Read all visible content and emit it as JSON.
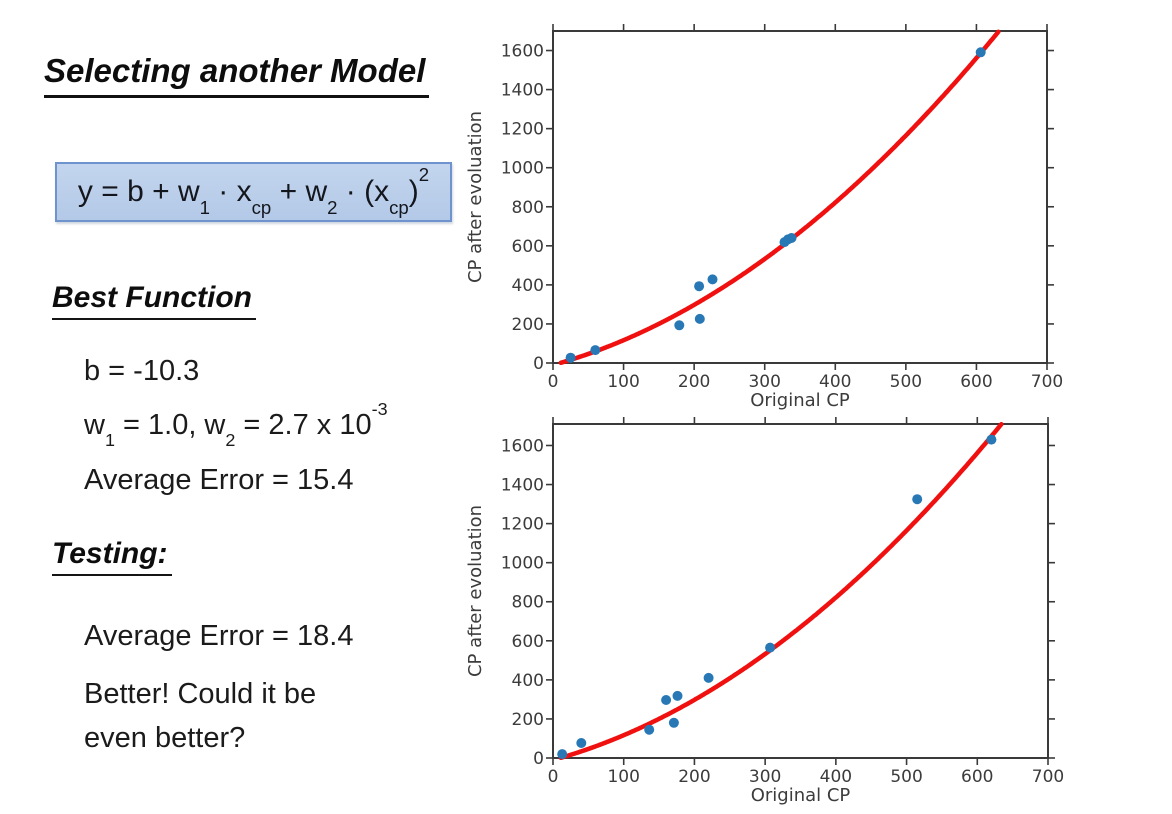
{
  "title": "Selecting another Model",
  "formula": [
    {
      "t": "y = b + w"
    },
    {
      "t": "1",
      "s": "sub"
    },
    {
      "t": " · x"
    },
    {
      "t": "cp",
      "s": "sub"
    },
    {
      "t": " + w"
    },
    {
      "t": "2",
      "s": "sub"
    },
    {
      "t": " · (x"
    },
    {
      "t": "cp",
      "s": "sub"
    },
    {
      "t": ")"
    },
    {
      "t": "2",
      "s": "sup"
    }
  ],
  "best_function": {
    "heading": "Best Function",
    "param_b": [
      {
        "t": "b = -10.3"
      }
    ],
    "params_w": [
      {
        "t": "w"
      },
      {
        "t": "1",
        "s": "sub"
      },
      {
        "t": " = 1.0, w"
      },
      {
        "t": "2",
        "s": "sub"
      },
      {
        "t": " = 2.7 x 10"
      },
      {
        "t": "-3",
        "s": "sup"
      }
    ],
    "avg_error": [
      {
        "t": "Average Error = 15.4"
      }
    ]
  },
  "testing": {
    "heading": "Testing:",
    "avg_error": [
      {
        "t": "Average Error = 18.4"
      }
    ],
    "note_line1": "Better! Could it be",
    "note_line2": "even better?"
  },
  "colors": {
    "formula_box_fill": "#b9cdea",
    "formula_box_border": "#6f94cd",
    "curve_red": "#f01010",
    "point_blue": "#2878b5",
    "axis_gray": "#3a3a3a"
  },
  "chart_data": [
    {
      "type": "scatter",
      "role": "training",
      "xlabel": "Original CP",
      "ylabel": "CP after evoluation",
      "xlim": [
        0,
        700
      ],
      "ylim": [
        0,
        1700
      ],
      "xticks": [
        0,
        100,
        200,
        300,
        400,
        500,
        600,
        700
      ],
      "yticks": [
        0,
        200,
        400,
        600,
        800,
        1000,
        1200,
        1400,
        1600
      ],
      "grid": false,
      "legend": null,
      "points": [
        [
          338,
          640
        ],
        [
          333,
          633
        ],
        [
          328,
          619
        ],
        [
          207,
          393
        ],
        [
          226,
          428
        ],
        [
          25,
          27
        ],
        [
          179,
          193
        ],
        [
          60,
          66
        ],
        [
          208,
          226
        ],
        [
          606,
          1591
        ]
      ],
      "fit": {
        "type": "quadratic",
        "b": -10.3,
        "w1": 1.0,
        "w2": 0.0027
      }
    },
    {
      "type": "scatter",
      "role": "testing",
      "xlabel": "Original CP",
      "ylabel": "CP after evoluation",
      "xlim": [
        0,
        700
      ],
      "ylim": [
        0,
        1710
      ],
      "xticks": [
        0,
        100,
        200,
        300,
        400,
        500,
        600,
        700
      ],
      "yticks": [
        0,
        200,
        400,
        600,
        800,
        1000,
        1200,
        1400,
        1600
      ],
      "grid": false,
      "legend": null,
      "points": [
        [
          13,
          20
        ],
        [
          40,
          77
        ],
        [
          136,
          145
        ],
        [
          160,
          297
        ],
        [
          176,
          318
        ],
        [
          171,
          180
        ],
        [
          220,
          410
        ],
        [
          307,
          565
        ],
        [
          515,
          1325
        ],
        [
          620,
          1630
        ]
      ],
      "fit": {
        "type": "quadratic",
        "b": -10.3,
        "w1": 1.0,
        "w2": 0.0027
      }
    }
  ]
}
